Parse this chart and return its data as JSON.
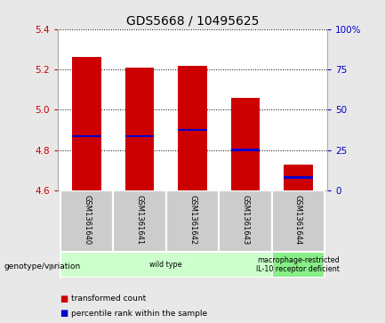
{
  "title": "GDS5668 / 10495625",
  "samples": [
    "GSM1361640",
    "GSM1361641",
    "GSM1361642",
    "GSM1361643",
    "GSM1361644"
  ],
  "bar_bottom": 4.6,
  "bar_tops": [
    5.26,
    5.21,
    5.22,
    5.06,
    4.73
  ],
  "blue_markers": [
    4.87,
    4.87,
    4.9,
    4.8,
    4.665
  ],
  "ylim_left": [
    4.6,
    5.4
  ],
  "ylim_right": [
    0,
    100
  ],
  "yticks_left": [
    4.6,
    4.8,
    5.0,
    5.2,
    5.4
  ],
  "yticks_right": [
    0,
    25,
    50,
    75,
    100
  ],
  "ytick_labels_right": [
    "0",
    "25",
    "50",
    "75",
    "100%"
  ],
  "bar_color": "#cc0000",
  "blue_color": "#0000cc",
  "bar_width": 0.55,
  "grid_color": "#000000",
  "left_axis_color": "#cc0000",
  "right_axis_color": "#0000cc",
  "genotype_groups": [
    {
      "label": "wild type",
      "samples": [
        0,
        1,
        2,
        3
      ],
      "color": "#ccffcc"
    },
    {
      "label": "macrophage-restricted\nIL-10 receptor deficient",
      "samples": [
        4
      ],
      "color": "#88ee88"
    }
  ],
  "legend_items": [
    {
      "label": "transformed count",
      "color": "#cc0000"
    },
    {
      "label": "percentile rank within the sample",
      "color": "#0000cc"
    }
  ],
  "genotype_label": "genotype/variation",
  "sample_box_color": "#cccccc",
  "plot_bg_color": "#ffffff",
  "outer_bg_color": "#e8e8e8"
}
